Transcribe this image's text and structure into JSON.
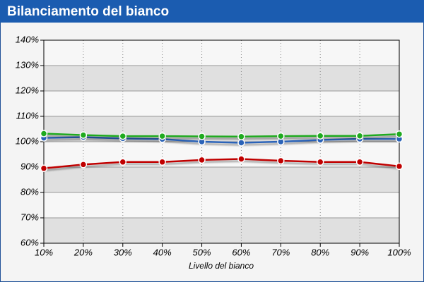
{
  "chart_data": {
    "type": "line",
    "title": "Bilanciamento del bianco",
    "x_label": "Livello del bianco",
    "categories": [
      "10%",
      "20%",
      "30%",
      "40%",
      "50%",
      "60%",
      "70%",
      "80%",
      "90%",
      "100%"
    ],
    "series": [
      {
        "color": "#c00000",
        "values": [
          89.5,
          91,
          92,
          92,
          92.8,
          93.2,
          92.5,
          92,
          92,
          90.3
        ]
      },
      {
        "color": "#2b63b8",
        "values": [
          101.5,
          101.8,
          101.3,
          101,
          100,
          99.6,
          100,
          100.7,
          101.1,
          101.1
        ]
      },
      {
        "color": "#1faa1f",
        "values": [
          103.2,
          102.6,
          102.2,
          102.2,
          102.1,
          102,
          102.2,
          102.3,
          102.3,
          103
        ]
      }
    ],
    "ylim": [
      60,
      140
    ],
    "yticks": [
      {
        "value": 60,
        "label": "60%"
      },
      {
        "value": 70,
        "label": "70%"
      },
      {
        "value": 80,
        "label": "80%"
      },
      {
        "value": 90,
        "label": "90%"
      },
      {
        "value": 100,
        "label": "100%"
      },
      {
        "value": 110,
        "label": "110%"
      },
      {
        "value": 120,
        "label": "120%"
      },
      {
        "value": 130,
        "label": "130%"
      },
      {
        "value": 140,
        "label": "140%"
      }
    ],
    "grid": true
  }
}
